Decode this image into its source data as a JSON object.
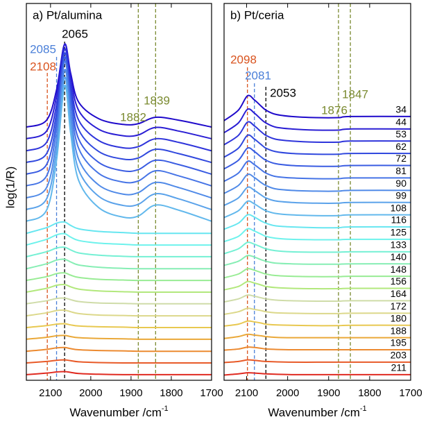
{
  "chart_data": [
    {
      "type": "line",
      "title": "a) Pt/alumina",
      "ylabel": "log(1/R)",
      "xlabel": "Wavenumber /cm",
      "xlabel_superscript": "-1",
      "xlim": [
        2160,
        1700
      ],
      "xticks": [
        2100,
        2000,
        1900,
        1800,
        1700
      ],
      "ylim": [
        0,
        100
      ],
      "x": [
        2160,
        2110,
        2085,
        2065,
        2050,
        2030,
        1980,
        1920,
        1882,
        1839,
        1780,
        1700
      ],
      "markers": [
        {
          "x": 2108,
          "color": "#d9531e"
        },
        {
          "x": 2085,
          "color": "#4a7fd8"
        },
        {
          "x": 2065,
          "color": "#000000"
        },
        {
          "x": 1882,
          "color": "#7a8a30"
        },
        {
          "x": 1839,
          "color": "#7a8a30"
        }
      ],
      "series": [
        {
          "color": "#1f0acb",
          "values": [
            67.2,
            69.0,
            77.1,
            89.2,
            81.5,
            73.8,
            69.4,
            67.9,
            68.1,
            69.8,
            69.0,
            67.2
          ]
        },
        {
          "color": "#2a1ed4",
          "values": [
            64.1,
            66.1,
            75.4,
            89.1,
            80.4,
            71.6,
            66.6,
            64.9,
            65.1,
            67.1,
            66.1,
            64.1
          ]
        },
        {
          "color": "#2e34db",
          "values": [
            60.9,
            63.1,
            73.1,
            87.9,
            78.5,
            69.0,
            63.6,
            61.7,
            62.0,
            64.1,
            63.1,
            60.9
          ]
        },
        {
          "color": "#3048de",
          "values": [
            57.8,
            60.1,
            70.9,
            86.8,
            76.7,
            66.5,
            60.7,
            58.7,
            59.0,
            61.3,
            60.1,
            57.8
          ]
        },
        {
          "color": "#3a5ce2",
          "values": [
            54.7,
            57.2,
            68.7,
            85.7,
            74.9,
            64.0,
            57.8,
            55.6,
            55.9,
            58.4,
            57.2,
            54.7
          ]
        },
        {
          "color": "#4674e6",
          "values": [
            51.6,
            54.2,
            66.5,
            84.6,
            73.1,
            61.5,
            54.9,
            52.6,
            52.9,
            55.6,
            54.2,
            51.6
          ]
        },
        {
          "color": "#508ae8",
          "values": [
            48.4,
            51.1,
            63.7,
            82.4,
            70.5,
            58.6,
            51.8,
            49.4,
            49.8,
            52.5,
            51.1,
            48.4
          ]
        },
        {
          "color": "#5aa2ea",
          "values": [
            45.3,
            48.1,
            61.1,
            80.3,
            68.1,
            55.8,
            48.8,
            46.4,
            46.7,
            49.5,
            48.1,
            45.3
          ]
        },
        {
          "color": "#62b8ec",
          "values": [
            42.2,
            45.1,
            58.4,
            78.2,
            65.6,
            53.0,
            45.8,
            43.3,
            43.6,
            46.5,
            45.1,
            42.2
          ]
        },
        {
          "color": "#66e6f0",
          "values": [
            39.0,
            40.5,
            41.7,
            42.0,
            41.1,
            40.2,
            39.5,
            39.2,
            39.0,
            39.0,
            39.0,
            39.0
          ]
        },
        {
          "color": "#6df2ec",
          "values": [
            35.9,
            37.4,
            38.6,
            38.9,
            38.0,
            37.1,
            36.4,
            36.1,
            35.9,
            35.9,
            35.9,
            35.9
          ]
        },
        {
          "color": "#74f0d4",
          "values": [
            32.8,
            34.1,
            35.1,
            35.3,
            34.6,
            33.8,
            33.2,
            32.9,
            32.8,
            32.8,
            32.8,
            32.8
          ]
        },
        {
          "color": "#86eeb4",
          "values": [
            29.6,
            30.9,
            31.9,
            32.1,
            31.4,
            30.6,
            30.0,
            29.7,
            29.6,
            29.6,
            29.6,
            29.6
          ]
        },
        {
          "color": "#98ec94",
          "values": [
            26.5,
            27.5,
            28.3,
            28.5,
            27.9,
            27.3,
            26.8,
            26.6,
            26.5,
            26.5,
            26.5,
            26.5
          ]
        },
        {
          "color": "#b2e87c",
          "values": [
            23.4,
            24.4,
            25.2,
            25.4,
            24.8,
            24.2,
            23.7,
            23.5,
            23.4,
            23.4,
            23.4,
            23.4
          ]
        },
        {
          "color": "#cfdca8",
          "values": [
            20.3,
            21.1,
            21.7,
            21.8,
            21.4,
            20.9,
            20.5,
            20.4,
            20.3,
            20.3,
            20.3,
            20.3
          ]
        },
        {
          "color": "#dcd88a",
          "values": [
            17.1,
            17.9,
            18.5,
            18.6,
            18.2,
            17.7,
            17.3,
            17.2,
            17.1,
            17.1,
            17.1,
            17.1
          ]
        },
        {
          "color": "#e8c850",
          "values": [
            14.0,
            14.5,
            14.9,
            15.0,
            14.7,
            14.4,
            14.2,
            14.1,
            14.0,
            14.0,
            14.0,
            14.0
          ]
        },
        {
          "color": "#eaa838",
          "values": [
            10.9,
            11.4,
            11.8,
            11.9,
            11.6,
            11.3,
            11.1,
            11.0,
            10.9,
            10.9,
            10.9,
            10.9
          ]
        },
        {
          "color": "#ec8a30",
          "values": [
            7.7,
            8.2,
            8.6,
            8.7,
            8.4,
            8.1,
            7.9,
            7.8,
            7.7,
            7.7,
            7.7,
            7.7
          ]
        },
        {
          "color": "#e85a28",
          "values": [
            4.6,
            5.0,
            5.3,
            5.4,
            5.2,
            4.9,
            4.7,
            4.6,
            4.6,
            4.6,
            4.6,
            4.6
          ]
        },
        {
          "color": "#e02a20",
          "values": [
            1.5,
            1.9,
            2.2,
            2.3,
            2.1,
            1.8,
            1.6,
            1.5,
            1.5,
            1.5,
            1.5,
            1.5
          ]
        }
      ]
    },
    {
      "type": "line",
      "title": "b) Pt/ceria",
      "xlabel": "Wavenumber /cm",
      "xlabel_superscript": "-1",
      "xlim": [
        2155,
        1700
      ],
      "xticks": [
        2100,
        2000,
        1900,
        1800,
        1700
      ],
      "ylim": [
        0,
        100
      ],
      "x": [
        2155,
        2120,
        2098,
        2081,
        2065,
        2053,
        2030,
        1990,
        1930,
        1876,
        1847,
        1700
      ],
      "markers": [
        {
          "x": 2098,
          "color": "#d9531e"
        },
        {
          "x": 2081,
          "color": "#4a7fd8"
        },
        {
          "x": 2053,
          "color": "#000000"
        },
        {
          "x": 1876,
          "color": "#7a8a30"
        },
        {
          "x": 1847,
          "color": "#7a8a30"
        }
      ],
      "series": [
        {
          "name": "34",
          "color": "#1f0acb",
          "values": [
            68.9,
            71.7,
            75.5,
            74.4,
            72.8,
            71.7,
            70.6,
            70.0,
            69.7,
            69.7,
            70.0,
            70.0
          ]
        },
        {
          "name": "44",
          "color": "#2a1ed4",
          "values": [
            65.7,
            68.3,
            71.9,
            70.9,
            69.3,
            68.3,
            67.2,
            66.7,
            66.4,
            66.4,
            66.7,
            66.7
          ]
        },
        {
          "name": "53",
          "color": "#2e34db",
          "values": [
            62.5,
            65.0,
            68.5,
            67.5,
            66.0,
            65.0,
            64.0,
            63.5,
            63.2,
            63.2,
            63.5,
            63.5
          ]
        },
        {
          "name": "62",
          "color": "#3048de",
          "values": [
            59.2,
            61.6,
            65.0,
            64.0,
            62.6,
            61.6,
            60.7,
            60.2,
            60.0,
            60.0,
            60.2,
            60.2
          ]
        },
        {
          "name": "72",
          "color": "#3a5ce2",
          "values": [
            56.1,
            58.4,
            61.6,
            60.7,
            59.3,
            58.4,
            57.5,
            57.0,
            56.8,
            56.8,
            57.0,
            57.0
          ]
        },
        {
          "name": "81",
          "color": "#4674e6",
          "values": [
            52.8,
            55.0,
            58.1,
            57.2,
            55.9,
            55.0,
            54.1,
            53.7,
            53.5,
            53.5,
            53.7,
            53.7
          ]
        },
        {
          "name": "90",
          "color": "#508ae8",
          "values": [
            49.6,
            51.7,
            54.6,
            53.8,
            52.5,
            51.7,
            50.8,
            50.4,
            50.2,
            50.2,
            50.4,
            50.4
          ]
        },
        {
          "name": "99",
          "color": "#5aa2ea",
          "values": [
            46.4,
            48.4,
            51.2,
            50.4,
            49.2,
            48.4,
            47.6,
            47.2,
            47.0,
            47.0,
            47.2,
            47.2
          ]
        },
        {
          "name": "108",
          "color": "#62b8ec",
          "values": [
            43.2,
            45.0,
            47.5,
            46.8,
            45.7,
            45.0,
            44.3,
            43.9,
            43.7,
            43.7,
            43.9,
            43.9
          ]
        },
        {
          "name": "116",
          "color": "#66e6f0",
          "values": [
            40.1,
            41.7,
            43.9,
            43.3,
            42.3,
            41.7,
            41.0,
            40.7,
            40.5,
            40.5,
            40.7,
            40.7
          ]
        },
        {
          "name": "125",
          "color": "#6df2ec",
          "values": [
            36.8,
            38.2,
            40.2,
            39.6,
            38.8,
            38.2,
            37.7,
            37.4,
            37.3,
            37.3,
            37.4,
            37.4
          ]
        },
        {
          "name": "133",
          "color": "#74f0d4",
          "values": [
            33.6,
            34.9,
            36.6,
            36.1,
            35.4,
            34.9,
            34.4,
            34.1,
            34.0,
            34.0,
            34.1,
            34.1
          ]
        },
        {
          "name": "140",
          "color": "#86eeb4",
          "values": [
            30.5,
            31.6,
            33.1,
            32.7,
            32.0,
            31.6,
            31.1,
            30.9,
            30.8,
            30.8,
            30.9,
            30.9
          ]
        },
        {
          "name": "148",
          "color": "#98ec94",
          "values": [
            27.2,
            28.2,
            29.6,
            29.2,
            28.6,
            28.2,
            27.8,
            27.6,
            27.5,
            27.5,
            27.6,
            27.6
          ]
        },
        {
          "name": "156",
          "color": "#b2e87c",
          "values": [
            24.0,
            24.9,
            26.2,
            25.8,
            25.3,
            24.9,
            24.6,
            24.4,
            24.3,
            24.3,
            24.4,
            24.4
          ]
        },
        {
          "name": "164",
          "color": "#cfdca8",
          "values": [
            20.8,
            21.6,
            22.6,
            22.3,
            21.9,
            21.6,
            21.3,
            21.1,
            21.0,
            21.0,
            21.1,
            21.1
          ]
        },
        {
          "name": "172",
          "color": "#dcd88a",
          "values": [
            17.5,
            18.2,
            19.1,
            18.8,
            18.5,
            18.2,
            17.9,
            17.8,
            17.7,
            17.7,
            17.8,
            17.8
          ]
        },
        {
          "name": "180",
          "color": "#e8c850",
          "values": [
            14.4,
            14.9,
            15.7,
            15.5,
            15.2,
            14.9,
            14.7,
            14.6,
            14.5,
            14.5,
            14.6,
            14.6
          ]
        },
        {
          "name": "188",
          "color": "#eaa838",
          "values": [
            11.1,
            11.6,
            12.2,
            12.0,
            11.8,
            11.6,
            11.4,
            11.3,
            11.3,
            11.3,
            11.3,
            11.3
          ]
        },
        {
          "name": "195",
          "color": "#ec8a30",
          "values": [
            8.0,
            8.3,
            8.8,
            8.7,
            8.5,
            8.3,
            8.2,
            8.1,
            8.1,
            8.1,
            8.1,
            8.1
          ]
        },
        {
          "name": "203",
          "color": "#e85a28",
          "values": [
            4.7,
            5.0,
            5.4,
            5.3,
            5.1,
            5.0,
            4.9,
            4.8,
            4.8,
            4.8,
            4.8,
            4.8
          ]
        },
        {
          "name": "211",
          "color": "#e02a20",
          "values": [
            1.4,
            1.7,
            2.0,
            1.9,
            1.8,
            1.7,
            1.6,
            1.5,
            1.5,
            1.5,
            1.5,
            1.5
          ]
        }
      ]
    }
  ]
}
